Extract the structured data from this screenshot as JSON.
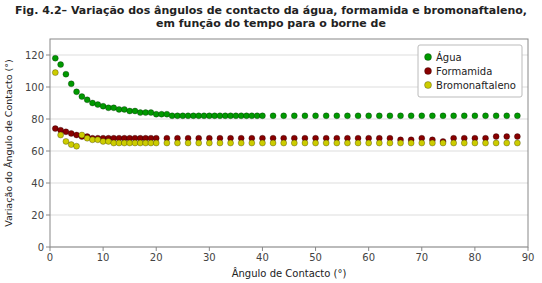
{
  "chart_data": {
    "type": "scatter",
    "title": "Fig. 4.2– Variação dos ângulos de contacto da água, formamida e bromonaftaleno, em função do tempo para o borne de",
    "x_label": "Ângulo de Contacto (°)",
    "y_label": "Variação do Ângulo de Contacto (°)",
    "xlim": [
      0,
      90
    ],
    "ylim": [
      0,
      130
    ],
    "xticks": [
      0,
      10,
      20,
      30,
      40,
      50,
      60,
      70,
      80,
      90
    ],
    "yticks": [
      0,
      20,
      40,
      60,
      80,
      100,
      120
    ],
    "grid": "y",
    "legend": "upper right",
    "series": [
      {
        "name": "Água",
        "color": "#009900",
        "marker": "circle",
        "x": [
          1,
          2,
          3,
          4,
          5,
          6,
          7,
          8,
          9,
          10,
          11,
          12,
          13,
          14,
          15,
          16,
          17,
          18,
          19,
          20,
          21,
          22,
          23,
          24,
          25,
          26,
          27,
          28,
          29,
          30,
          31,
          32,
          33,
          34,
          35,
          36,
          37,
          38,
          39,
          40,
          42,
          44,
          46,
          48,
          50,
          52,
          54,
          56,
          58,
          60,
          62,
          64,
          66,
          68,
          70,
          72,
          74,
          76,
          78,
          80,
          82,
          84,
          86,
          88
        ],
        "values": [
          118,
          114,
          108,
          102,
          97,
          94,
          92,
          90,
          89,
          88,
          87,
          87,
          86,
          86,
          85,
          85,
          84,
          84,
          84,
          83,
          83,
          83,
          82,
          82,
          82,
          82,
          82,
          82,
          82,
          82,
          82,
          82,
          82,
          82,
          82,
          82,
          82,
          82,
          82,
          82,
          82,
          82,
          82,
          82,
          82,
          82,
          82,
          82,
          82,
          82,
          82,
          82,
          82,
          82,
          82,
          82,
          82,
          82,
          82,
          82,
          82,
          82,
          82,
          82
        ]
      },
      {
        "name": "Formamida",
        "color": "#880000",
        "marker": "circle",
        "x": [
          1,
          2,
          3,
          4,
          5,
          6,
          7,
          8,
          9,
          10,
          11,
          12,
          13,
          14,
          15,
          16,
          17,
          18,
          19,
          20,
          22,
          24,
          26,
          28,
          30,
          32,
          34,
          36,
          38,
          40,
          42,
          44,
          46,
          48,
          50,
          52,
          54,
          56,
          58,
          60,
          62,
          64,
          66,
          68,
          70,
          72,
          74,
          76,
          78,
          80,
          82,
          84,
          86,
          88
        ],
        "values": [
          74,
          73,
          72,
          71,
          70,
          69,
          69,
          68,
          68,
          68,
          68,
          68,
          68,
          68,
          68,
          68,
          68,
          68,
          68,
          68,
          68,
          68,
          68,
          68,
          68,
          68,
          68,
          68,
          68,
          68,
          68,
          68,
          68,
          68,
          68,
          68,
          68,
          68,
          68,
          68,
          68,
          68,
          67,
          67,
          68,
          67,
          66,
          68,
          68,
          68,
          68,
          69,
          69,
          69
        ]
      },
      {
        "name": "Bromonaftaleno",
        "color": "#CCCC00",
        "marker": "circle",
        "x": [
          1,
          2,
          3,
          4,
          5,
          6,
          7,
          8,
          9,
          10,
          11,
          12,
          13,
          14,
          15,
          16,
          17,
          18,
          19,
          20,
          22,
          24,
          26,
          28,
          30,
          32,
          34,
          36,
          38,
          40,
          42,
          44,
          46,
          48,
          50,
          52,
          54,
          56,
          58,
          60,
          62,
          64,
          66,
          68,
          70,
          72,
          74,
          76,
          78,
          80,
          82,
          84,
          86,
          88
        ],
        "values": [
          109,
          70,
          66,
          64,
          63,
          70,
          68,
          67,
          67,
          66,
          66,
          65,
          65,
          65,
          65,
          65,
          65,
          65,
          65,
          65,
          65,
          65,
          65,
          65,
          65,
          65,
          65,
          65,
          65,
          65,
          65,
          65,
          65,
          65,
          65,
          65,
          65,
          65,
          65,
          65,
          65,
          65,
          65,
          65,
          65,
          65,
          65,
          65,
          65,
          65,
          65,
          65,
          65,
          65
        ]
      }
    ]
  }
}
